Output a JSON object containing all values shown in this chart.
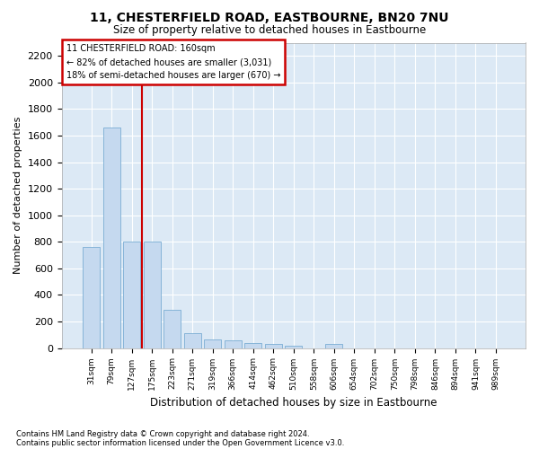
{
  "title": "11, CHESTERFIELD ROAD, EASTBOURNE, BN20 7NU",
  "subtitle": "Size of property relative to detached houses in Eastbourne",
  "xlabel": "Distribution of detached houses by size in Eastbourne",
  "ylabel": "Number of detached properties",
  "categories": [
    "31sqm",
    "79sqm",
    "127sqm",
    "175sqm",
    "223sqm",
    "271sqm",
    "319sqm",
    "366sqm",
    "414sqm",
    "462sqm",
    "510sqm",
    "558sqm",
    "606sqm",
    "654sqm",
    "702sqm",
    "750sqm",
    "798sqm",
    "846sqm",
    "894sqm",
    "941sqm",
    "989sqm"
  ],
  "values": [
    760,
    1660,
    800,
    800,
    290,
    115,
    65,
    55,
    40,
    30,
    20,
    0,
    30,
    0,
    0,
    0,
    0,
    0,
    0,
    0,
    0
  ],
  "bar_color": "#c5d9ef",
  "bar_edge_color": "#7aadd4",
  "bg_color": "#dce9f5",
  "vline_x_index": 3,
  "vline_color": "#cc0000",
  "annotation_title": "11 CHESTERFIELD ROAD: 160sqm",
  "annotation_line1": "← 82% of detached houses are smaller (3,031)",
  "annotation_line2": "18% of semi-detached houses are larger (670) →",
  "annotation_box_color": "#cc0000",
  "footnote1": "Contains HM Land Registry data © Crown copyright and database right 2024.",
  "footnote2": "Contains public sector information licensed under the Open Government Licence v3.0.",
  "ylim": [
    0,
    2300
  ],
  "yticks": [
    0,
    200,
    400,
    600,
    800,
    1000,
    1200,
    1400,
    1600,
    1800,
    2000,
    2200
  ]
}
